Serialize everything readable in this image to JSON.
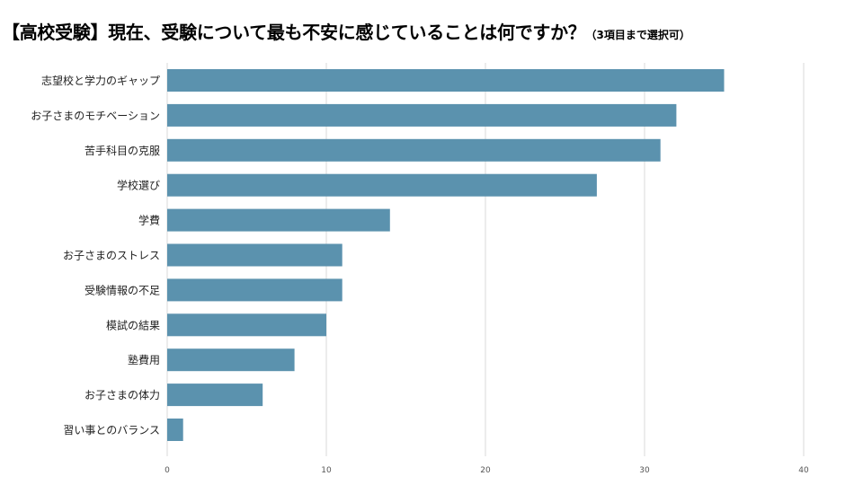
{
  "title": "【高校受験】現在、受験について最も不安に感じていることは何ですか？",
  "title_note": "（3項目まで選択可）",
  "colors": {
    "bar": "#5b92ae",
    "grid": "#dadada",
    "text": "#222222",
    "tick": "#555555"
  },
  "chart_data": {
    "type": "bar",
    "orientation": "horizontal",
    "title": "【高校受験】現在、受験について最も不安に感じていることは何ですか？（3項目まで選択可）",
    "categories": [
      "志望校と学力のギャップ",
      "お子さまのモチベーション",
      "苦手科目の克服",
      "学校選び",
      "学費",
      "お子さまのストレス",
      "受験情報の不足",
      "模試の結果",
      "塾費用",
      "お子さまの体力",
      "習い事とのバランス"
    ],
    "values": [
      35,
      32,
      31,
      27,
      14,
      11,
      11,
      10,
      8,
      6,
      1
    ],
    "xlim": [
      0,
      40
    ],
    "xticks": [
      0,
      10,
      20,
      30,
      40
    ],
    "xlabel": "",
    "ylabel": "",
    "grid": true,
    "legend": "none"
  }
}
